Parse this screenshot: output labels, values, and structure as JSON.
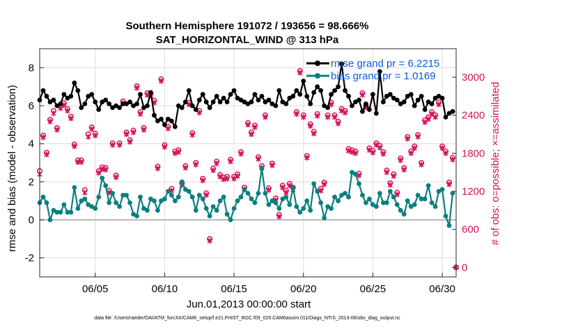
{
  "chart_data": {
    "type": "line",
    "title": "Southern Hemisphere 191072 / 193656 = 98.666%",
    "subtitle": "SAT_HORIZONTAL_WIND @ 313 hPa",
    "xlabel": "Jun.01,2013 00:00:00 start",
    "ylabel": "rmse and bias (model - observation)",
    "y2label": "# of obs: o=possible; ×=assimilated",
    "footer": "data file: /Users/raeder/DAI/ATM_forcXX/CAM6_setup/f.e21.FHIST_BGC.f09_025.CAM6assim.011/Diags_NTrS_2013-06/obs_diag_output.nc",
    "x_tick_labels": [
      "06/05",
      "06/10",
      "06/15",
      "06/20",
      "06/25",
      "06/30"
    ],
    "x_tick_values": [
      5,
      10,
      15,
      20,
      25,
      30
    ],
    "xlim": [
      1,
      31
    ],
    "ylim": [
      -3,
      9
    ],
    "y_ticks": [
      -2,
      0,
      2,
      4,
      6,
      8
    ],
    "y2lim": [
      -150,
      3450
    ],
    "y2_ticks": [
      0,
      600,
      1200,
      1800,
      2400,
      3000
    ],
    "grid": true,
    "legend_position": "top-right",
    "colors": {
      "rmse": "#000000",
      "bias": "#0a7f7f",
      "obs": "#d4145a",
      "zero_line": "#b8b8b8",
      "legend_text": "#0a5bd8"
    },
    "series": [
      {
        "name": "rmse grand pr = 6.2215",
        "axis": "left",
        "x": [
          1.0,
          1.25,
          1.5,
          1.75,
          2.0,
          2.25,
          2.5,
          2.75,
          3.0,
          3.25,
          3.5,
          3.75,
          4.0,
          4.25,
          4.5,
          4.75,
          5.0,
          5.25,
          5.5,
          5.75,
          6.0,
          6.25,
          6.5,
          6.75,
          7.0,
          7.25,
          7.5,
          7.75,
          8.0,
          8.25,
          8.5,
          8.75,
          9.0,
          9.25,
          9.5,
          9.75,
          10.0,
          10.25,
          10.5,
          10.75,
          11.0,
          11.25,
          11.5,
          11.75,
          12.0,
          12.25,
          12.5,
          12.75,
          13.0,
          13.25,
          13.5,
          13.75,
          14.0,
          14.25,
          14.5,
          14.75,
          15.0,
          15.25,
          15.5,
          15.75,
          16.0,
          16.25,
          16.5,
          16.75,
          17.0,
          17.25,
          17.5,
          17.75,
          18.0,
          18.25,
          18.5,
          18.75,
          19.0,
          19.25,
          19.5,
          19.75,
          20.0,
          20.25,
          20.5,
          20.75,
          21.0,
          21.25,
          21.5,
          21.75,
          22.0,
          22.25,
          22.5,
          22.75,
          23.0,
          23.25,
          23.5,
          23.75,
          24.0,
          24.25,
          24.5,
          24.75,
          25.0,
          25.25,
          25.5,
          25.75,
          26.0,
          26.25,
          26.5,
          26.75,
          27.0,
          27.25,
          27.5,
          27.75,
          28.0,
          28.25,
          28.5,
          28.75,
          29.0,
          29.25,
          29.5,
          29.75,
          30.0,
          30.25,
          30.5,
          30.75
        ],
        "values": [
          6.3,
          6.8,
          6.5,
          6.2,
          6.3,
          6.0,
          6.1,
          6.6,
          6.4,
          6.5,
          7.2,
          6.8,
          5.9,
          6.1,
          6.5,
          6.6,
          6.2,
          5.8,
          6.2,
          6.3,
          6.1,
          5.9,
          6.0,
          5.9,
          6.1,
          6.1,
          6.2,
          6.0,
          6.1,
          6.6,
          5.9,
          6.0,
          6.7,
          5.5,
          5.2,
          5.3,
          5.0,
          5.3,
          5.2,
          4.9,
          6.0,
          5.9,
          6.2,
          6.8,
          6.0,
          5.8,
          6.3,
          6.6,
          6.2,
          5.9,
          6.2,
          6.5,
          6.2,
          6.4,
          6.2,
          6.6,
          6.8,
          6.4,
          6.3,
          6.2,
          6.1,
          6.2,
          6.6,
          6.3,
          6.5,
          6.2,
          6.3,
          6.1,
          6.0,
          6.8,
          6.2,
          6.1,
          6.4,
          6.5,
          6.8,
          6.6,
          7.3,
          6.5,
          6.1,
          6.7,
          7.0,
          6.8,
          6.0,
          5.9,
          6.6,
          6.8,
          7.0,
          8.2,
          6.8,
          6.5,
          6.0,
          6.2,
          6.3,
          5.7,
          6.1,
          5.8,
          6.6,
          5.6,
          7.8,
          6.2,
          6.5,
          6.6,
          6.4,
          6.3,
          6.1,
          6.2,
          6.5,
          6.6,
          6.0,
          6.3,
          6.5,
          5.8,
          6.2,
          6.1,
          6.4,
          6.5,
          6.4,
          5.4,
          5.6,
          5.7
        ]
      },
      {
        "name": "bias grand pr = 1.0169",
        "axis": "left",
        "x": [
          1.0,
          1.25,
          1.5,
          1.75,
          2.0,
          2.25,
          2.5,
          2.75,
          3.0,
          3.25,
          3.5,
          3.75,
          4.0,
          4.25,
          4.5,
          4.75,
          5.0,
          5.25,
          5.5,
          5.75,
          6.0,
          6.25,
          6.5,
          6.75,
          7.0,
          7.25,
          7.5,
          7.75,
          8.0,
          8.25,
          8.5,
          8.75,
          9.0,
          9.25,
          9.5,
          9.75,
          10.0,
          10.25,
          10.5,
          10.75,
          11.0,
          11.25,
          11.5,
          11.75,
          12.0,
          12.25,
          12.5,
          12.75,
          13.0,
          13.25,
          13.5,
          13.75,
          14.0,
          14.25,
          14.5,
          14.75,
          15.0,
          15.25,
          15.5,
          15.75,
          16.0,
          16.25,
          16.5,
          16.75,
          17.0,
          17.25,
          17.5,
          17.75,
          18.0,
          18.25,
          18.5,
          18.75,
          19.0,
          19.25,
          19.5,
          19.75,
          20.0,
          20.25,
          20.5,
          20.75,
          21.0,
          21.25,
          21.5,
          21.75,
          22.0,
          22.25,
          22.5,
          22.75,
          23.0,
          23.25,
          23.5,
          23.75,
          24.0,
          24.25,
          24.5,
          24.75,
          25.0,
          25.25,
          25.5,
          25.75,
          26.0,
          26.25,
          26.5,
          26.75,
          27.0,
          27.25,
          27.5,
          27.75,
          28.0,
          28.25,
          28.5,
          28.75,
          29.0,
          29.25,
          29.5,
          29.75,
          30.0,
          30.25,
          30.5,
          30.75
        ],
        "values": [
          0.9,
          1.2,
          0.9,
          0.0,
          0.5,
          0.4,
          0.4,
          0.8,
          0.4,
          0.4,
          1.7,
          0.6,
          1.0,
          1.1,
          0.8,
          0.7,
          0.6,
          1.2,
          2.2,
          1.8,
          0.9,
          1.4,
          0.9,
          0.7,
          1.3,
          1.3,
          0.9,
          0.3,
          0.2,
          1.2,
          0.6,
          0.5,
          1.1,
          1.0,
          0.5,
          1.0,
          1.1,
          1.5,
          1.3,
          1.0,
          1.2,
          2.0,
          1.6,
          1.5,
          1.2,
          0.5,
          1.3,
          1.1,
          0.6,
          0.2,
          0.7,
          0.5,
          1.0,
          1.2,
          0.3,
          0.0,
          0.6,
          1.0,
          1.2,
          1.6,
          1.4,
          1.1,
          0.9,
          1.4,
          2.7,
          1.4,
          0.8,
          1.0,
          0.9,
          0.6,
          1.1,
          1.2,
          0.8,
          1.7,
          0.7,
          0.4,
          0.6,
          1.0,
          0.5,
          1.9,
          1.5,
          0.9,
          0.1,
          0.7,
          0.6,
          1.2,
          1.0,
          1.3,
          1.4,
          1.2,
          2.5,
          2.4,
          1.9,
          1.3,
          0.9,
          1.1,
          0.8,
          0.7,
          1.4,
          0.9,
          0.9,
          1.5,
          1.2,
          0.8,
          0.5,
          0.3,
          1.0,
          0.7,
          0.8,
          1.3,
          1.1,
          1.1,
          1.8,
          0.9,
          0.7,
          1.5,
          1.6,
          0.2,
          -0.3,
          1.4
        ]
      },
      {
        "name": "# of obs possible",
        "axis": "right",
        "marker": "o",
        "x": [
          1.0,
          1.25,
          1.5,
          1.75,
          2.0,
          2.25,
          2.5,
          2.75,
          3.0,
          3.25,
          3.5,
          3.75,
          4.0,
          4.25,
          4.5,
          4.75,
          5.0,
          5.25,
          5.5,
          5.75,
          6.0,
          6.25,
          6.5,
          6.75,
          7.0,
          7.25,
          7.5,
          7.75,
          8.0,
          8.25,
          8.5,
          8.75,
          9.0,
          9.25,
          9.5,
          9.75,
          10.0,
          10.25,
          10.5,
          10.75,
          11.0,
          11.25,
          11.5,
          11.75,
          12.0,
          12.25,
          12.5,
          12.75,
          13.0,
          13.25,
          13.5,
          13.75,
          14.0,
          14.25,
          14.5,
          14.75,
          15.0,
          15.25,
          15.5,
          15.75,
          16.0,
          16.25,
          16.5,
          16.75,
          17.0,
          17.25,
          17.5,
          17.75,
          18.0,
          18.25,
          18.5,
          18.75,
          19.0,
          19.25,
          19.5,
          19.75,
          20.0,
          20.25,
          20.5,
          20.75,
          21.0,
          21.25,
          21.5,
          21.75,
          22.0,
          22.25,
          22.5,
          22.75,
          23.0,
          23.25,
          23.5,
          23.75,
          24.0,
          24.25,
          24.5,
          24.75,
          25.0,
          25.25,
          25.5,
          25.75,
          26.0,
          26.25,
          26.5,
          26.75,
          27.0,
          27.25,
          27.5,
          27.75,
          28.0,
          28.25,
          28.5,
          28.75,
          29.0,
          29.25,
          29.5,
          29.75,
          30.0,
          30.25,
          30.5,
          30.75
        ],
        "values": [
          1520,
          2080,
          1810,
          2330,
          2470,
          2200,
          2540,
          2590,
          2500,
          2380,
          1940,
          1690,
          1690,
          1220,
          2100,
          2210,
          2110,
          1520,
          1580,
          1570,
          1210,
          1960,
          1450,
          1960,
          2620,
          2130,
          2010,
          2160,
          2860,
          2450,
          2200,
          2750,
          2740,
          2630,
          1590,
          2970,
          1930,
          2220,
          1240,
          1830,
          1850,
          1330,
          1600,
          2600,
          2120,
          1650,
          2470,
          1400,
          1170,
          450,
          1560,
          1670,
          1460,
          1420,
          1430,
          1700,
          1430,
          1470,
          1820,
          1260,
          2280,
          2130,
          2240,
          1740,
          1600,
          2400,
          1250,
          1640,
          1090,
          830,
          1290,
          1210,
          1320,
          1260,
          2450,
          3100,
          2400,
          1760,
          2260,
          2140,
          2420,
          1240,
          1340,
          2400,
          2600,
          2400,
          2300,
          2500,
          2470,
          1870,
          1850,
          1830,
          1480,
          2750,
          2550,
          1880,
          1840,
          1960,
          1920,
          1820,
          1530,
          1330,
          1470,
          1180,
          1720,
          1570,
          2060,
          1830,
          1910,
          2090,
          1650,
          2320,
          2370,
          2450,
          2400,
          2600,
          1910,
          1830,
          1340,
          1730
        ]
      },
      {
        "name": "# of obs assimilated",
        "axis": "right",
        "marker": "x",
        "x": [
          1.0,
          1.25,
          1.5,
          1.75,
          2.0,
          2.25,
          2.5,
          2.75,
          3.0,
          3.25,
          3.5,
          3.75,
          4.0,
          4.25,
          4.5,
          4.75,
          5.0,
          5.25,
          5.5,
          5.75,
          6.0,
          6.25,
          6.5,
          6.75,
          7.0,
          7.25,
          7.5,
          7.75,
          8.0,
          8.25,
          8.5,
          8.75,
          9.0,
          9.25,
          9.5,
          9.75,
          10.0,
          10.25,
          10.5,
          10.75,
          11.0,
          11.25,
          11.5,
          11.75,
          12.0,
          12.25,
          12.5,
          12.75,
          13.0,
          13.25,
          13.5,
          13.75,
          14.0,
          14.25,
          14.5,
          14.75,
          15.0,
          15.25,
          15.5,
          15.75,
          16.0,
          16.25,
          16.5,
          16.75,
          17.0,
          17.25,
          17.5,
          17.75,
          18.0,
          18.25,
          18.5,
          18.75,
          19.0,
          19.25,
          19.5,
          19.75,
          20.0,
          20.25,
          20.5,
          20.75,
          21.0,
          21.25,
          21.5,
          21.75,
          22.0,
          22.25,
          22.5,
          22.75,
          23.0,
          23.25,
          23.5,
          23.75,
          24.0,
          24.25,
          24.5,
          24.75,
          25.0,
          25.25,
          25.5,
          25.75,
          26.0,
          26.25,
          26.5,
          26.75,
          27.0,
          27.25,
          27.5,
          27.75,
          28.0,
          28.25,
          28.5,
          28.75,
          29.0,
          29.25,
          29.5,
          29.75,
          30.0,
          30.25,
          30.5,
          30.75
        ],
        "values": [
          1470,
          2050,
          1780,
          2300,
          2430,
          2170,
          2510,
          2560,
          2470,
          2350,
          1910,
          1660,
          1660,
          1180,
          2060,
          2180,
          2080,
          1490,
          1550,
          1540,
          1180,
          1930,
          1420,
          1930,
          2590,
          2100,
          1980,
          2130,
          2830,
          2420,
          2170,
          2720,
          2710,
          2600,
          1560,
          2940,
          1900,
          2190,
          1210,
          1800,
          1820,
          1300,
          1570,
          2570,
          2090,
          1620,
          2440,
          1370,
          1140,
          420,
          1530,
          1640,
          1430,
          1390,
          1400,
          1670,
          1400,
          1440,
          1790,
          1230,
          2250,
          2100,
          2210,
          1710,
          1570,
          2370,
          1220,
          1610,
          1060,
          800,
          1260,
          1180,
          1290,
          1230,
          2420,
          3070,
          2370,
          1730,
          2230,
          2110,
          2390,
          1210,
          1310,
          2370,
          2570,
          2370,
          2270,
          2470,
          2440,
          1840,
          1820,
          1800,
          1450,
          2720,
          2520,
          1850,
          1810,
          1930,
          1890,
          1790,
          1500,
          1300,
          1440,
          1150,
          1690,
          1540,
          2030,
          1800,
          1880,
          2060,
          1620,
          2290,
          2340,
          2420,
          2370,
          2570,
          1880,
          1800,
          1310,
          1700
        ]
      }
    ],
    "annotations": [
      {
        "x": 31,
        "y2": 0,
        "label": ""
      }
    ]
  }
}
